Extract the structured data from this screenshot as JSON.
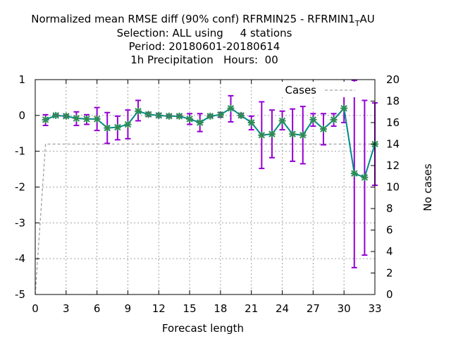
{
  "chart_data": {
    "type": "line",
    "title_lines": {
      "line1_prefix": "Normalized mean RMSE diff (90% conf) RFRMIN25 - RFRMIN1",
      "line1_subscript": "T",
      "line1_suffix": "AU",
      "line2": "Selection: ALL using     4 stations",
      "line3": "Period: 20180601-20180614",
      "line4": "1h Precipitation   Hours:  00"
    },
    "xlabel": "Forecast length",
    "y2label": "No cases",
    "xlim": [
      0,
      33
    ],
    "ylim": [
      -5,
      1
    ],
    "y2lim": [
      0,
      20
    ],
    "xticks": [
      0,
      3,
      6,
      9,
      12,
      15,
      18,
      21,
      24,
      27,
      30,
      33
    ],
    "yticks": [
      1,
      0,
      -1,
      -2,
      -3,
      -4,
      -5
    ],
    "y2ticks": [
      20,
      18,
      16,
      14,
      12,
      10,
      8,
      6,
      4,
      2,
      0
    ],
    "grid": true,
    "legend": {
      "placement": "top-right",
      "label": "Cases"
    },
    "colors": {
      "line": "#008b8b",
      "marker": "#2e8b57",
      "error_bar": "#9400d3",
      "cases": "#a0a0a0",
      "grid": "#a0a0a0",
      "axis": "#000000"
    },
    "series": [
      {
        "x": [
          1,
          2,
          3,
          4,
          5,
          6,
          7,
          8,
          9,
          10,
          11,
          12,
          13,
          14,
          15,
          16,
          17,
          18,
          19,
          20,
          21,
          22,
          23,
          24,
          25,
          26,
          27,
          28,
          29,
          30,
          31,
          32,
          33
        ],
        "values": [
          -0.12,
          0.0,
          -0.02,
          -0.08,
          -0.1,
          -0.1,
          -0.35,
          -0.33,
          -0.25,
          0.12,
          0.03,
          0.0,
          -0.02,
          -0.02,
          -0.1,
          -0.2,
          -0.02,
          0.02,
          0.2,
          0.0,
          -0.2,
          -0.55,
          -0.52,
          -0.15,
          -0.52,
          -0.55,
          -0.12,
          -0.38,
          -0.12,
          0.2,
          -1.62,
          -1.73,
          -0.8
        ],
        "err_low": [
          -0.28,
          -0.03,
          -0.06,
          -0.28,
          -0.25,
          -0.42,
          -0.78,
          -0.68,
          -0.65,
          -0.15,
          -0.02,
          -0.05,
          -0.05,
          -0.05,
          -0.25,
          -0.45,
          -0.05,
          -0.05,
          -0.18,
          -0.05,
          -0.4,
          -1.48,
          -1.18,
          -0.4,
          -1.28,
          -1.35,
          -0.3,
          -0.82,
          -0.3,
          -0.2,
          -4.25,
          -3.9,
          -1.95
        ],
        "err_high": [
          0.02,
          0.03,
          0.02,
          0.1,
          0.02,
          0.22,
          0.08,
          -0.02,
          0.15,
          0.42,
          0.08,
          0.05,
          0.02,
          0.02,
          0.05,
          0.05,
          0.02,
          0.08,
          0.55,
          0.05,
          -0.02,
          0.38,
          0.15,
          0.12,
          0.18,
          0.25,
          0.05,
          0.05,
          0.05,
          0.58,
          0.98,
          0.42,
          0.35
        ]
      },
      {
        "name": "Cases",
        "x": [
          0,
          1,
          2,
          3,
          4,
          5,
          6,
          7,
          8,
          9,
          10,
          11,
          12,
          13,
          14,
          15,
          16,
          17,
          18,
          19,
          20,
          21,
          22,
          23,
          24,
          25,
          26,
          27,
          28,
          29,
          30,
          31,
          32,
          33
        ],
        "values": [
          0,
          14,
          14,
          14,
          14,
          14,
          14,
          14,
          14,
          14,
          14,
          14,
          14,
          14,
          14,
          14,
          14,
          14,
          14,
          14,
          14,
          14,
          14,
          14,
          14,
          14,
          14,
          14,
          14,
          14,
          14,
          14,
          14,
          14
        ]
      }
    ]
  }
}
